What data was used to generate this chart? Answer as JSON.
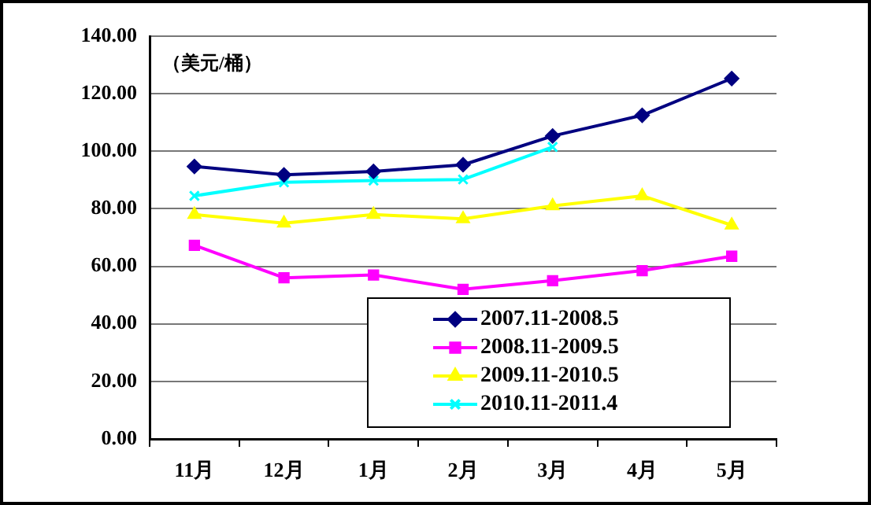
{
  "chart_data": {
    "type": "line",
    "categories": [
      "11月",
      "12月",
      "1月",
      "2月",
      "3月",
      "4月",
      "5月"
    ],
    "series": [
      {
        "name": "2007.11-2008.5",
        "color": "#000080",
        "marker": "diamond",
        "values": [
          94.7,
          91.8,
          93,
          95.3,
          105.3,
          112.5,
          125.3
        ]
      },
      {
        "name": "2008.11-2009.5",
        "color": "#ff00ff",
        "marker": "square",
        "values": [
          67.3,
          56,
          57,
          52,
          55,
          58.5,
          63.5
        ]
      },
      {
        "name": "2009.11-2010.5",
        "color": "#ffff00",
        "marker": "triangle",
        "values": [
          78,
          75,
          78,
          76.5,
          81,
          84.5,
          74.3
        ]
      },
      {
        "name": "2010.11-2011.4",
        "color": "#00ffff",
        "marker": "cross",
        "values": [
          84.5,
          89.2,
          89.8,
          90.2,
          101.5,
          null,
          null
        ]
      }
    ],
    "ylim": [
      0,
      140
    ],
    "yticks": [
      {
        "value": 0,
        "label": "0.00"
      },
      {
        "value": 20,
        "label": "20.00"
      },
      {
        "value": 40,
        "label": "40.00"
      },
      {
        "value": 60,
        "label": "60.00"
      },
      {
        "value": 80,
        "label": "80.00"
      },
      {
        "value": 100,
        "label": "100.00"
      },
      {
        "value": 120,
        "label": "120.00"
      },
      {
        "value": 140,
        "label": "140.00"
      }
    ],
    "grid": "y",
    "legend": "bottom right",
    "annotations": [
      "（美元/桶）"
    ]
  }
}
